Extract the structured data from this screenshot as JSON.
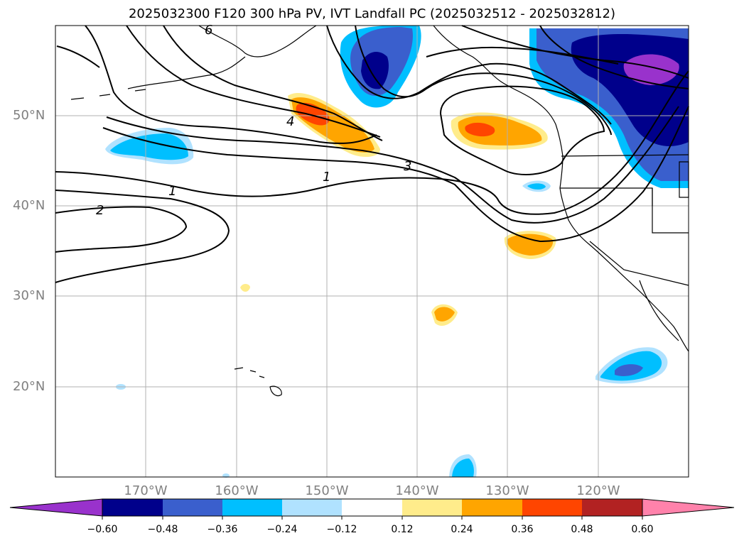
{
  "title": "2025032300 F120 300 hPa PV, IVT Landfall PC (2025032512 - 2025032812)",
  "axes": {
    "lat_labels": [
      "50°N",
      "40°N",
      "30°N",
      "20°N"
    ],
    "lon_labels": [
      "170°W",
      "160°W",
      "150°W",
      "140°W",
      "130°W",
      "120°W"
    ]
  },
  "contour_labels": [
    "6",
    "4",
    "3",
    "1",
    "1",
    "2"
  ],
  "colorbar": {
    "tick_labels": [
      "−0.60",
      "−0.48",
      "−0.36",
      "−0.24",
      "−0.12",
      "0.12",
      "0.24",
      "0.36",
      "0.48",
      "0.60"
    ],
    "colors": [
      "#9932cc",
      "#00008b",
      "#3a5fcd",
      "#00bfff",
      "#b0e2ff",
      "#ffffff",
      "#ffec8b",
      "#ffa500",
      "#ff4500",
      "#b22222",
      "#ff82ab"
    ]
  },
  "map_colors": {
    "land_outline": "#000000",
    "gridline": "#b0b0b0",
    "contour": "#000000"
  }
}
